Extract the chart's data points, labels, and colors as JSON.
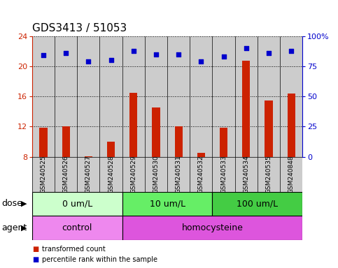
{
  "title": "GDS3413 / 51053",
  "samples": [
    "GSM240525",
    "GSM240526",
    "GSM240527",
    "GSM240528",
    "GSM240529",
    "GSM240530",
    "GSM240531",
    "GSM240532",
    "GSM240533",
    "GSM240534",
    "GSM240535",
    "GSM240848"
  ],
  "bar_values": [
    11.9,
    12.0,
    8.1,
    10.0,
    16.5,
    14.5,
    12.0,
    8.5,
    11.9,
    20.7,
    15.5,
    16.4
  ],
  "dot_values": [
    84,
    86,
    79,
    80,
    88,
    85,
    85,
    79,
    83,
    90,
    86,
    88
  ],
  "ylim_left": [
    8,
    24
  ],
  "ylim_right": [
    0,
    100
  ],
  "yticks_left": [
    8,
    12,
    16,
    20,
    24
  ],
  "yticks_right": [
    0,
    25,
    50,
    75,
    100
  ],
  "bar_color": "#cc2200",
  "dot_color": "#0000cc",
  "dose_groups": [
    {
      "label": "0 um/L",
      "start": 0,
      "end": 4,
      "color": "#ccffcc"
    },
    {
      "label": "10 um/L",
      "start": 4,
      "end": 8,
      "color": "#66ee66"
    },
    {
      "label": "100 um/L",
      "start": 8,
      "end": 12,
      "color": "#44cc44"
    }
  ],
  "agent_groups": [
    {
      "label": "control",
      "start": 0,
      "end": 4,
      "color": "#ee88ee"
    },
    {
      "label": "homocysteine",
      "start": 4,
      "end": 12,
      "color": "#dd55dd"
    }
  ],
  "dose_label": "dose",
  "agent_label": "agent",
  "legend_bar": "transformed count",
  "legend_dot": "percentile rank within the sample",
  "bg_color": "#ffffff",
  "sample_bg_color": "#cccccc",
  "title_fontsize": 11,
  "axis_fontsize": 9,
  "tick_fontsize": 8,
  "sample_fontsize": 6.5
}
